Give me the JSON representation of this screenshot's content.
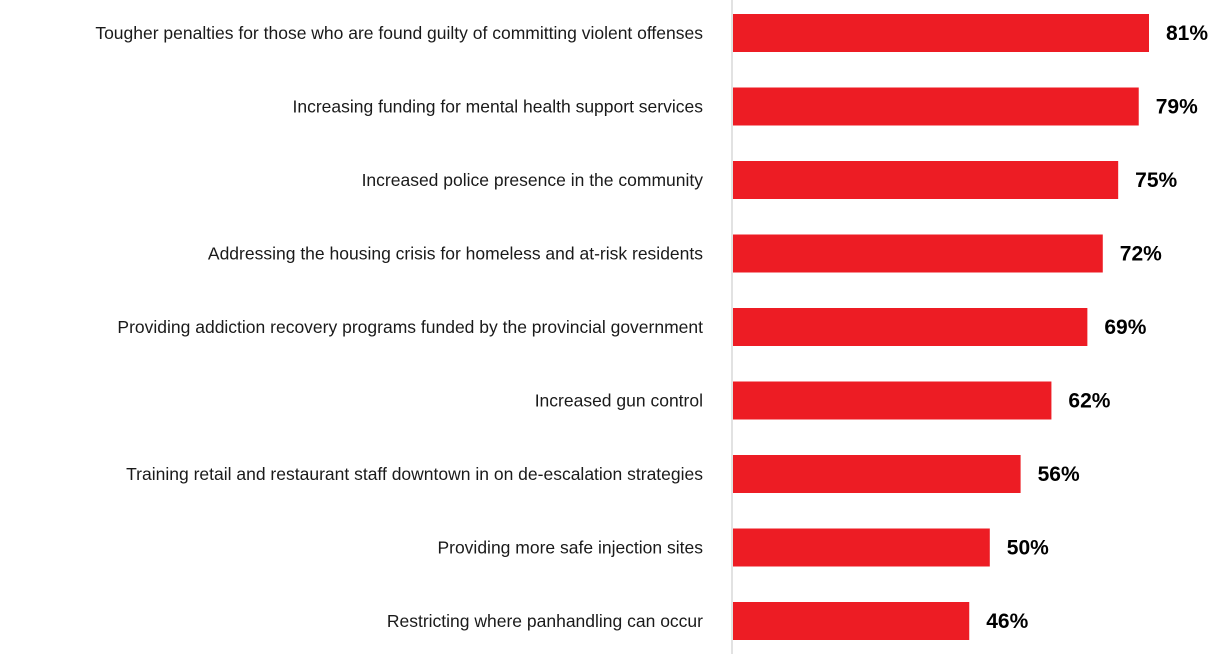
{
  "chart_data": {
    "type": "bar",
    "orientation": "horizontal",
    "title": "",
    "xlabel": "",
    "ylabel": "",
    "xlim": [
      0,
      100
    ],
    "grid": false,
    "legend": "none",
    "bar_color": "#ed1c24",
    "value_suffix": "%",
    "categories": [
      "Tougher penalties for those who are found guilty of committing violent offenses",
      "Increasing funding for mental health support services",
      "Increased police presence in the community",
      "Addressing the housing crisis for homeless and at-risk residents",
      "Providing addiction recovery programs funded by the provincial government",
      "Increased gun control",
      "Training retail and restaurant staff downtown in on de-escalation strategies",
      "Providing more safe injection sites",
      "Restricting where panhandling can occur"
    ],
    "values": [
      81,
      79,
      75,
      72,
      69,
      62,
      56,
      50,
      46
    ],
    "value_labels": [
      "81%",
      "79%",
      "75%",
      "72%",
      "69%",
      "62%",
      "56%",
      "50%",
      "46%"
    ]
  }
}
